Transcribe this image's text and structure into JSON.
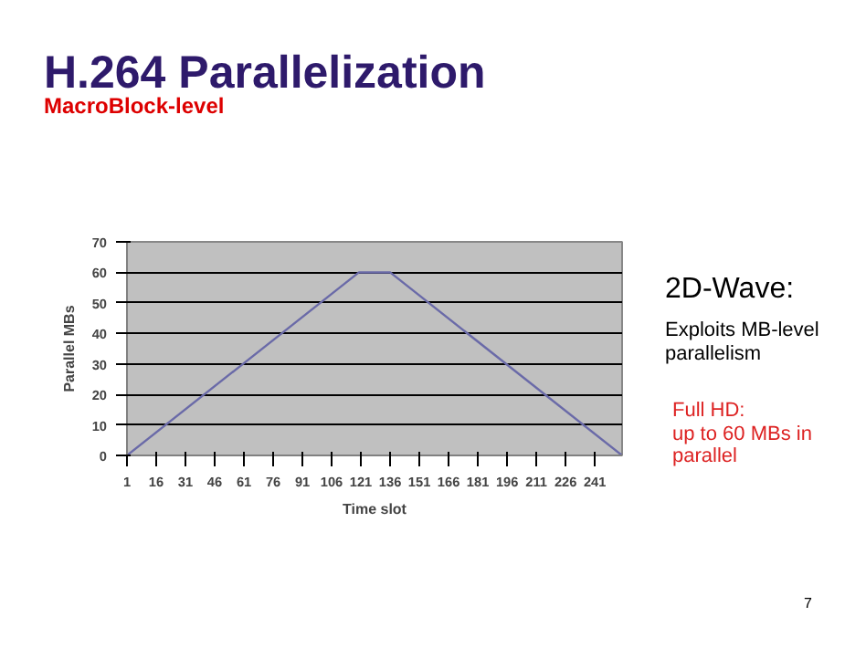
{
  "chart_data": {
    "type": "line",
    "title": "H.264 Parallelization",
    "subtitle": "MacroBlock-level",
    "xlabel": "Time slot",
    "ylabel": "Parallel MBs",
    "annotations": [
      "2D-Wave:",
      "Exploits MB-level\nparallelism",
      "Full HD:\nup to 60 MBs in\nparallel",
      "7"
    ],
    "x": [
      1,
      120,
      136,
      255
    ],
    "series": [
      {
        "color": "#6a6aa8",
        "values": [
          0,
          60,
          60,
          0
        ]
      }
    ],
    "xlim": [
      1,
      255
    ],
    "xticks": [
      1,
      16,
      31,
      46,
      61,
      76,
      91,
      106,
      121,
      136,
      151,
      166,
      181,
      196,
      211,
      226,
      241
    ],
    "ylim": [
      0,
      70
    ],
    "yticks": [
      0,
      10,
      20,
      30,
      40,
      50,
      60,
      70
    ],
    "grid": "y",
    "marker": "none",
    "line_style": "solid"
  }
}
